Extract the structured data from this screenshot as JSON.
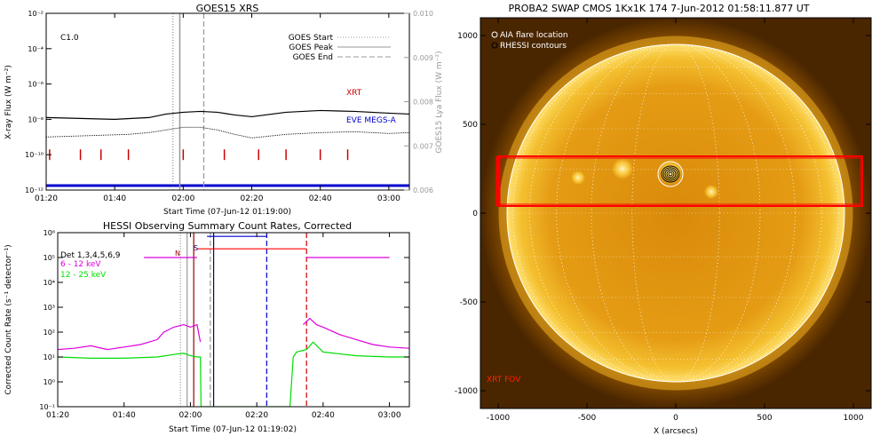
{
  "chart_data": [
    {
      "type": "line",
      "title": "GOES15 XRS",
      "xlabel": "Start Time (07-Jun-12 01:19:00)",
      "ylabel": "X-ray Flux (W m⁻²)",
      "ylabel_right": "GOES15 Lya Flux (W m⁻²)",
      "xlim_min": [
        80,
        186
      ],
      "x_ticks": [
        {
          "min": 80,
          "label": "01:20"
        },
        {
          "min": 100,
          "label": "01:40"
        },
        {
          "min": 120,
          "label": "02:00"
        },
        {
          "min": 140,
          "label": "02:20"
        },
        {
          "min": 160,
          "label": "02:40"
        },
        {
          "min": 180,
          "label": "03:00"
        }
      ],
      "y_log_range": [
        -12,
        -2
      ],
      "y_ticks": [
        {
          "exp": -2,
          "label": "10⁻²"
        },
        {
          "exp": -4,
          "label": "10⁻⁴"
        },
        {
          "exp": -6,
          "label": "10⁻⁶"
        },
        {
          "exp": -8,
          "label": "10⁻⁸"
        },
        {
          "exp": -10,
          "label": "10⁻¹⁰"
        },
        {
          "exp": -12,
          "label": "10⁻¹²"
        }
      ],
      "y2_range": [
        0.006,
        0.01
      ],
      "y2_ticks": [
        "0.010",
        "0.009",
        "0.008",
        "0.007",
        "0.006"
      ],
      "class_label": "C1.0",
      "legend": [
        {
          "name": "GOES Start",
          "style": "dotted"
        },
        {
          "name": "GOES Peak",
          "style": "solid"
        },
        {
          "name": "GOES End",
          "style": "dashed"
        }
      ],
      "goes_start_min": 117,
      "goes_peak_min": 119,
      "goes_end_min": 126,
      "labels": {
        "xrt": "XRT",
        "eve": "EVE MEGS-A"
      },
      "colors": {
        "xrt": "#cc0000",
        "eve": "#0000cc",
        "markers": "#cc0000",
        "line": "#000000",
        "guide": "#999999"
      },
      "series": [
        {
          "key": "long",
          "x": [
            80,
            90,
            100,
            110,
            115,
            120,
            125,
            130,
            135,
            140,
            150,
            160,
            170,
            180,
            186
          ],
          "y_exp": [
            -7.9,
            -7.95,
            -8.0,
            -7.9,
            -7.7,
            -7.6,
            -7.55,
            -7.6,
            -7.75,
            -7.85,
            -7.6,
            -7.5,
            -7.55,
            -7.65,
            -7.7
          ]
        },
        {
          "key": "short",
          "x": [
            80,
            88,
            96,
            104,
            110,
            115,
            120,
            125,
            130,
            135,
            140,
            145,
            150,
            160,
            170,
            180,
            186
          ],
          "y_exp": [
            -9.0,
            -8.95,
            -8.9,
            -8.85,
            -8.75,
            -8.6,
            -8.45,
            -8.45,
            -8.6,
            -8.85,
            -9.05,
            -8.95,
            -8.85,
            -8.75,
            -8.7,
            -8.8,
            -8.75
          ]
        }
      ],
      "xrt_markers_min": [
        81,
        90,
        96,
        104,
        120,
        132,
        142,
        150,
        160,
        168
      ]
    },
    {
      "type": "line",
      "title": "HESSI Observing Summary Count Rates, Corrected",
      "xlabel": "Start Time (07-Jun-12 01:19:02)",
      "ylabel": "Corrected Count Rate (s⁻¹ detector⁻¹)",
      "xlim_min": [
        80,
        186
      ],
      "x_ticks": [
        {
          "min": 80,
          "label": "01:20"
        },
        {
          "min": 100,
          "label": "01:40"
        },
        {
          "min": 120,
          "label": "02:00"
        },
        {
          "min": 140,
          "label": "02:20"
        },
        {
          "min": 160,
          "label": "02:40"
        },
        {
          "min": 180,
          "label": "03:00"
        }
      ],
      "y_log_range": [
        -1,
        6
      ],
      "y_ticks": [
        {
          "exp": 6,
          "label": "10⁶"
        },
        {
          "exp": 5,
          "label": "10⁵"
        },
        {
          "exp": 4,
          "label": "10⁴"
        },
        {
          "exp": 3,
          "label": "10³"
        },
        {
          "exp": 2,
          "label": "10²"
        },
        {
          "exp": 1,
          "label": "10¹"
        },
        {
          "exp": 0,
          "label": "10⁰"
        },
        {
          "exp": -1,
          "label": "10⁻¹"
        }
      ],
      "legend": [
        {
          "name": "Det 1,3,4,5,6,9",
          "color": "#000000"
        },
        {
          "name": "6 - 12 keV",
          "color": "#dd00dd"
        },
        {
          "name": "12 - 25 keV",
          "color": "#00dd00"
        }
      ],
      "flag_labels": {
        "n": "N",
        "s": "S"
      },
      "vertical_lines": [
        {
          "min": 117,
          "color": "#999999",
          "style": "dotted"
        },
        {
          "min": 119,
          "color": "#999999",
          "style": "solid"
        },
        {
          "min": 126,
          "color": "#999999",
          "style": "dashed"
        },
        {
          "min": 121,
          "color": "#990000",
          "style": "solid"
        },
        {
          "min": 127,
          "color": "#000088",
          "style": "solid"
        },
        {
          "min": 143,
          "color": "#0000cc",
          "style": "dashed"
        },
        {
          "min": 155,
          "color": "#cc0000",
          "style": "dashed"
        }
      ],
      "series": [
        {
          "name": "6 - 12 keV",
          "color": "#dd00dd",
          "x": [
            80,
            85,
            90,
            95,
            100,
            105,
            110,
            112,
            115,
            118,
            120,
            122,
            123
          ],
          "y_exp": [
            1.3,
            1.35,
            1.45,
            1.3,
            1.4,
            1.5,
            1.7,
            2.0,
            2.2,
            2.3,
            2.2,
            2.3,
            1.6
          ]
        },
        {
          "name": "6 - 12 keV (late)",
          "color": "#dd00dd",
          "x": [
            154,
            156,
            158,
            160,
            165,
            170,
            175,
            180,
            186
          ],
          "y_exp": [
            2.3,
            2.55,
            2.3,
            2.2,
            1.9,
            1.7,
            1.5,
            1.4,
            1.35
          ]
        },
        {
          "name": "12 - 25 keV",
          "color": "#00dd00",
          "x": [
            80,
            90,
            100,
            110,
            115,
            118,
            120,
            122,
            123,
            123.2,
            150,
            151,
            152,
            155,
            157,
            160,
            170,
            180,
            186
          ],
          "y_exp": [
            1.0,
            0.95,
            0.95,
            1.0,
            1.1,
            1.15,
            1.05,
            1.0,
            1.0,
            -1,
            -1,
            1.0,
            1.2,
            1.3,
            1.6,
            1.2,
            1.05,
            1.0,
            1.0
          ]
        },
        {
          "name": "Attenuator level",
          "color": "#dd00dd",
          "x": [
            106,
            122
          ],
          "y_exp": [
            5.0,
            5.0
          ]
        },
        {
          "name": "Attenuator level (late)",
          "color": "#dd00dd",
          "x": [
            155,
            180
          ],
          "y_exp": [
            5.0,
            5.0
          ]
        },
        {
          "name": "Flag high",
          "color": "#ff0000",
          "x": [
            122,
            155
          ],
          "y_exp": [
            5.35,
            5.35
          ]
        },
        {
          "name": "S flag",
          "color": "#0000cc",
          "x": [
            125,
            143
          ],
          "y_exp": [
            5.85,
            5.85
          ]
        }
      ]
    },
    {
      "type": "heatmap",
      "title": "PROBA2 SWAP CMOS 1Kx1K 174   7-Jun-2012 01:58:11.877 UT",
      "xlabel": "X (arcsecs)",
      "ylabel": "",
      "xlim": [
        -1100,
        1100
      ],
      "ylim": [
        -1100,
        1100
      ],
      "x_ticks": [
        -1000,
        -500,
        0,
        500,
        1000
      ],
      "y_ticks": [
        1000,
        500,
        0,
        -500,
        -1000
      ],
      "legend": [
        {
          "name": "AIA flare location",
          "marker": "circle-white"
        },
        {
          "name": "RHESSI contours",
          "marker": "circle-black"
        }
      ],
      "fov_label": "XRT FOV",
      "solar_radius": 950,
      "xrt_fov": {
        "x": [
          -1000,
          1050
        ],
        "y": [
          40,
          320
        ]
      },
      "flare_center": [
        -30,
        220
      ],
      "colors": {
        "disk": "#e89a10",
        "fov": "#ff0000",
        "limb": "#ffffff",
        "label": "#ff2200"
      }
    }
  ]
}
